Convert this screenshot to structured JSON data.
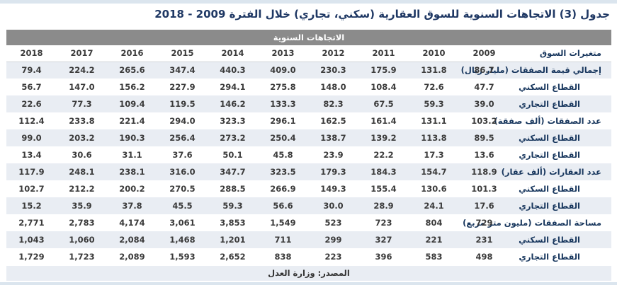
{
  "page": {
    "title": "جدول (3) الاتجاهات السنوية للسوق العقارية (سكني، تجاري) خلال الفترة 2009 - 2018"
  },
  "table": {
    "band_header": "الاتجاهات السنوية",
    "header": {
      "label_col": "متغيرات السوق",
      "years": [
        "2009",
        "2010",
        "2011",
        "2012",
        "2013",
        "2014",
        "2015",
        "2016",
        "2017",
        "2018"
      ]
    },
    "rows": [
      {
        "label": "إجمالي قيمة الصفقات (مليار ريال)",
        "indent": false,
        "values": [
          "86.7",
          "131.8",
          "175.9",
          "230.3",
          "409.0",
          "440.3",
          "347.4",
          "265.6",
          "224.2",
          "79.4"
        ]
      },
      {
        "label": "القطاع السكني",
        "indent": true,
        "values": [
          "47.7",
          "72.6",
          "108.4",
          "148.0",
          "275.8",
          "294.1",
          "227.9",
          "156.2",
          "147.0",
          "56.7"
        ]
      },
      {
        "label": "القطاع التجاري",
        "indent": true,
        "values": [
          "39.0",
          "59.3",
          "67.5",
          "82.3",
          "133.3",
          "146.2",
          "119.5",
          "109.4",
          "77.3",
          "22.6"
        ]
      },
      {
        "label": "عدد الصفقات (ألف صفقة)",
        "indent": false,
        "values": [
          "103.2",
          "131.1",
          "161.4",
          "162.5",
          "296.1",
          "323.3",
          "294.0",
          "221.4",
          "233.8",
          "112.4"
        ]
      },
      {
        "label": "القطاع السكني",
        "indent": true,
        "values": [
          "89.5",
          "113.8",
          "139.2",
          "138.7",
          "250.4",
          "273.2",
          "256.4",
          "190.3",
          "203.2",
          "99.0"
        ]
      },
      {
        "label": "القطاع التجاري",
        "indent": true,
        "values": [
          "13.6",
          "17.3",
          "22.2",
          "23.9",
          "45.8",
          "50.1",
          "37.6",
          "31.1",
          "30.6",
          "13.4"
        ]
      },
      {
        "label": "عدد العقارات (ألف عقار)",
        "indent": false,
        "values": [
          "118.9",
          "154.7",
          "184.3",
          "179.3",
          "323.5",
          "347.7",
          "316.0",
          "238.1",
          "248.1",
          "117.9"
        ]
      },
      {
        "label": "القطاع السكني",
        "indent": true,
        "values": [
          "101.3",
          "130.6",
          "155.4",
          "149.3",
          "266.9",
          "288.5",
          "270.5",
          "200.2",
          "212.2",
          "102.7"
        ]
      },
      {
        "label": "القطاع التجاري",
        "indent": true,
        "values": [
          "17.6",
          "24.1",
          "28.9",
          "30.0",
          "56.6",
          "59.3",
          "45.5",
          "37.8",
          "35.9",
          "15.2"
        ]
      },
      {
        "label": "مساحة الصفقات (مليون متر مربع)",
        "indent": false,
        "values": [
          "729",
          "804",
          "723",
          "523",
          "1,549",
          "3,853",
          "3,061",
          "4,174",
          "2,783",
          "2,771"
        ]
      },
      {
        "label": "القطاع السكني",
        "indent": true,
        "values": [
          "231",
          "221",
          "327",
          "299",
          "711",
          "1,201",
          "1,468",
          "2,084",
          "1,060",
          "1,043"
        ]
      },
      {
        "label": "القطاع التجاري",
        "indent": true,
        "values": [
          "498",
          "583",
          "396",
          "223",
          "838",
          "2,652",
          "1,593",
          "2,089",
          "1,723",
          "1,729"
        ]
      }
    ],
    "footer": "المصدر: وزارة العدل"
  },
  "colors": {
    "top_strip": "#dbe5ee",
    "band_header_bg": "#8b8b8b",
    "stripe_row_bg": "#e9edf3",
    "title_text": "#1f3864",
    "label_text": "#17365d",
    "number_text": "#3b3b3b"
  }
}
